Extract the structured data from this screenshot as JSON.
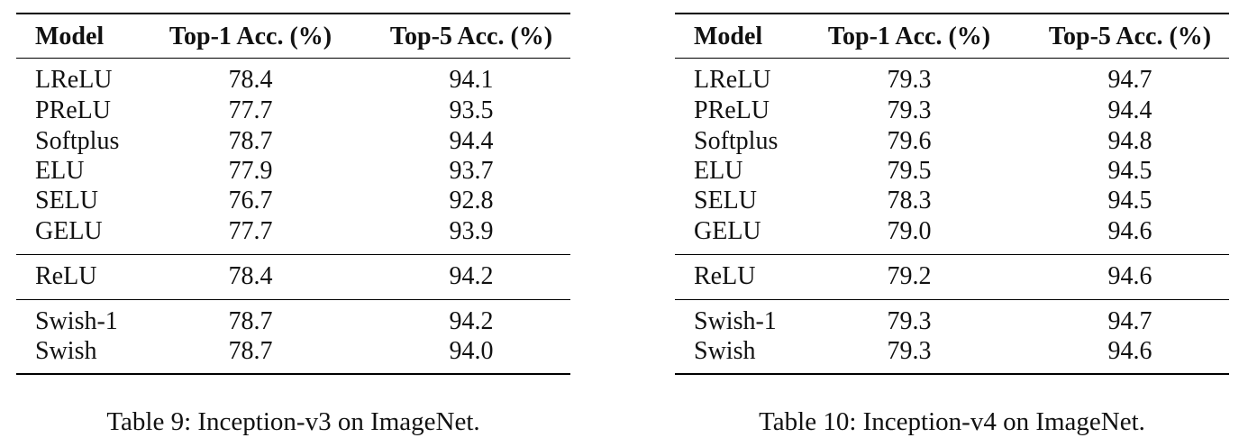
{
  "tables": [
    {
      "headers": [
        "Model",
        "Top-1 Acc. (%)",
        "Top-5 Acc. (%)"
      ],
      "groups": [
        [
          [
            "LReLU",
            "78.4",
            "94.1"
          ],
          [
            "PReLU",
            "77.7",
            "93.5"
          ],
          [
            "Softplus",
            "78.7",
            "94.4"
          ],
          [
            "ELU",
            "77.9",
            "93.7"
          ],
          [
            "SELU",
            "76.7",
            "92.8"
          ],
          [
            "GELU",
            "77.7",
            "93.9"
          ]
        ],
        [
          [
            "ReLU",
            "78.4",
            "94.2"
          ]
        ],
        [
          [
            "Swish-1",
            "78.7",
            "94.2"
          ],
          [
            "Swish",
            "78.7",
            "94.0"
          ]
        ]
      ],
      "caption": "Table 9: Inception-v3 on ImageNet."
    },
    {
      "headers": [
        "Model",
        "Top-1 Acc. (%)",
        "Top-5 Acc. (%)"
      ],
      "groups": [
        [
          [
            "LReLU",
            "79.3",
            "94.7"
          ],
          [
            "PReLU",
            "79.3",
            "94.4"
          ],
          [
            "Softplus",
            "79.6",
            "94.8"
          ],
          [
            "ELU",
            "79.5",
            "94.5"
          ],
          [
            "SELU",
            "78.3",
            "94.5"
          ],
          [
            "GELU",
            "79.0",
            "94.6"
          ]
        ],
        [
          [
            "ReLU",
            "79.2",
            "94.6"
          ]
        ],
        [
          [
            "Swish-1",
            "79.3",
            "94.7"
          ],
          [
            "Swish",
            "79.3",
            "94.6"
          ]
        ]
      ],
      "caption": "Table 10: Inception-v4 on ImageNet."
    }
  ]
}
